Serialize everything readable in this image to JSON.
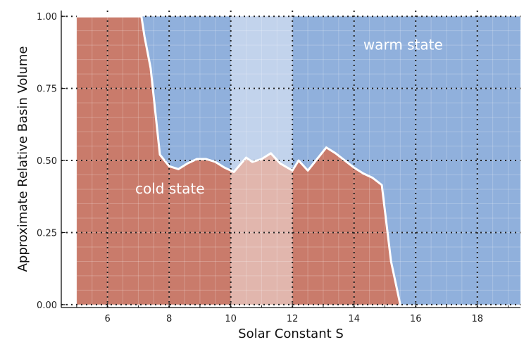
{
  "chart_data": {
    "type": "area",
    "xlabel": "Solar Constant S",
    "ylabel": "Approximate Relative Basin Volume",
    "xlim": [
      4.5,
      19.4
    ],
    "ylim": [
      -0.01,
      1.02
    ],
    "xticks": [
      6,
      8,
      10,
      12,
      14,
      16,
      18
    ],
    "yticks": [
      0.0,
      0.25,
      0.5,
      0.75,
      1.0
    ],
    "xtick_labels": [
      "6",
      "8",
      "10",
      "12",
      14,
      "16",
      "18"
    ],
    "ytick_labels": [
      "0.00",
      "0.25",
      "0.50",
      "0.75",
      "1.00"
    ],
    "grid": true,
    "x_range_data": [
      5.0,
      19.4
    ],
    "boundary": {
      "x": [
        5.0,
        7.1,
        7.2,
        7.4,
        7.7,
        8.0,
        8.3,
        8.6,
        8.9,
        9.2,
        9.5,
        9.8,
        10.1,
        10.5,
        10.7,
        11.0,
        11.3,
        11.6,
        12.0,
        12.2,
        12.5,
        12.8,
        13.1,
        13.4,
        13.7,
        14.0,
        14.3,
        14.6,
        14.9,
        15.2,
        15.5
      ],
      "y": [
        1.0,
        1.0,
        0.93,
        0.82,
        0.52,
        0.48,
        0.47,
        0.49,
        0.505,
        0.505,
        0.495,
        0.475,
        0.46,
        0.51,
        0.495,
        0.505,
        0.525,
        0.49,
        0.465,
        0.5,
        0.465,
        0.505,
        0.545,
        0.525,
        0.5,
        0.475,
        0.455,
        0.44,
        0.415,
        0.15,
        0.0
      ]
    },
    "highlight_x_range": [
      10.0,
      12.0
    ],
    "series": [
      {
        "name": "cold state",
        "color": "#c97b6b"
      },
      {
        "name": "warm state",
        "color": "#90b0dc"
      }
    ],
    "annotations": [
      {
        "text": "warm state",
        "x": 14.3,
        "y": 0.885
      },
      {
        "text": "cold state",
        "x": 6.9,
        "y": 0.385
      }
    ],
    "colors": {
      "boundary_line": "#ffffff",
      "highlight_overlay": "#ffffff"
    }
  }
}
